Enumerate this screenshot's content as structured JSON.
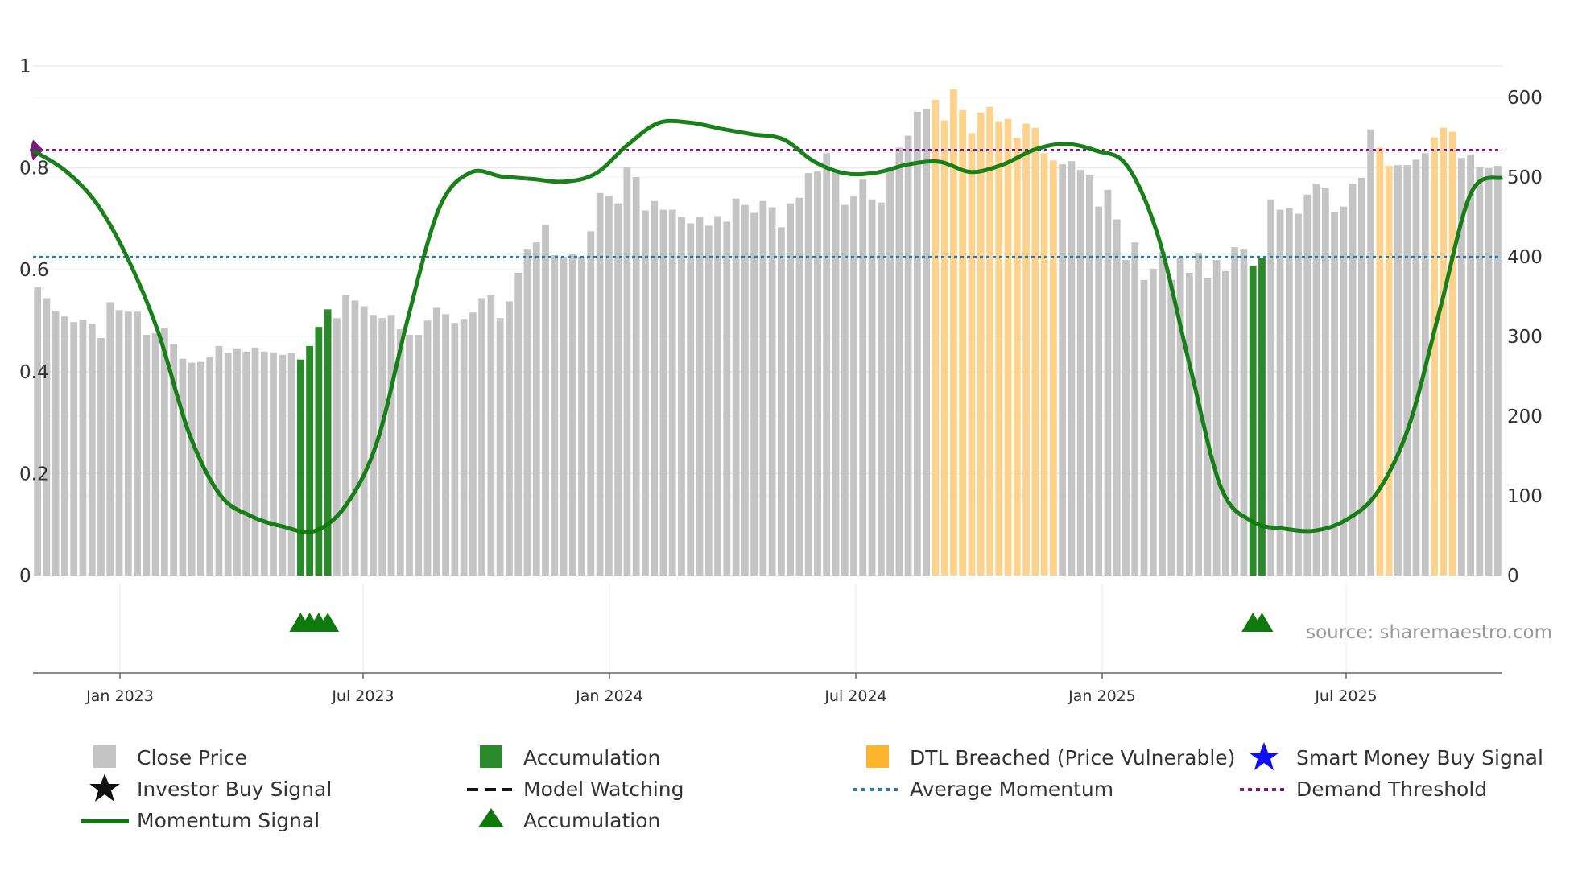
{
  "chart_data": {
    "type": "bar",
    "title": "",
    "left_axis": {
      "ticks": [
        "0",
        "0.2",
        "0.4",
        "0.6",
        "0.8",
        "1"
      ],
      "ylim": [
        0,
        1
      ]
    },
    "right_axis": {
      "ticks": [
        "0",
        "100",
        "200",
        "300",
        "400",
        "500",
        "600"
      ],
      "ylim": [
        0,
        600
      ]
    },
    "x_ticks": [
      "Jan 2023",
      "Jul 2023",
      "Jan 2024",
      "Jul 2024",
      "Jan 2025",
      "Jul 2025"
    ],
    "source": "source: sharemaestro.com",
    "demand_threshold": 0.835,
    "average_momentum": 0.625,
    "close_prices": [
      362,
      348,
      332,
      325,
      318,
      321,
      316,
      298,
      343,
      333,
      331,
      331,
      302,
      304,
      311,
      290,
      272,
      267,
      268,
      275,
      288,
      279,
      285,
      281,
      286,
      281,
      280,
      277,
      279,
      271,
      288,
      312,
      334,
      323,
      352,
      345,
      338,
      327,
      323,
      327,
      309,
      302,
      302,
      320,
      336,
      328,
      317,
      322,
      330,
      348,
      352,
      323,
      344,
      380,
      410,
      418,
      440,
      402,
      400,
      403,
      400,
      432,
      480,
      477,
      467,
      512,
      500,
      458,
      470,
      459,
      459,
      450,
      442,
      450,
      439,
      451,
      444,
      473,
      465,
      455,
      470,
      462,
      437,
      467,
      474,
      505,
      507,
      530,
      508,
      465,
      477,
      497,
      472,
      468,
      508,
      537,
      552,
      582,
      585,
      597,
      571,
      610,
      584,
      555,
      581,
      588,
      570,
      573,
      549,
      567,
      562,
      530,
      521,
      516,
      520,
      509,
      502,
      463,
      484,
      447,
      396,
      418,
      371,
      385,
      406,
      371,
      398,
      380,
      405,
      373,
      396,
      382,
      412,
      410,
      389,
      399,
      472,
      459,
      461,
      454,
      478,
      492,
      486,
      456,
      463,
      492,
      499,
      560,
      537,
      514,
      515,
      515,
      522,
      530,
      550,
      562,
      557,
      524,
      528,
      513,
      511,
      514
    ],
    "momentum": [
      0.834,
      0.796,
      0.733,
      0.626,
      0.479,
      0.278,
      0.157,
      0.116,
      0.096,
      0.087,
      0.137,
      0.261,
      0.507,
      0.722,
      0.791,
      0.783,
      0.778,
      0.773,
      0.789,
      0.844,
      0.888,
      0.889,
      0.877,
      0.866,
      0.856,
      0.812,
      0.789,
      0.791,
      0.807,
      0.812,
      0.792,
      0.806,
      0.835,
      0.847,
      0.834,
      0.804,
      0.664,
      0.413,
      0.173,
      0.106,
      0.092,
      0.088,
      0.109,
      0.163,
      0.291,
      0.521,
      0.751,
      0.781
    ],
    "accumulation_ranges": [
      [
        29,
        32
      ],
      [
        134,
        135
      ]
    ],
    "dtl_breached_ranges": [
      [
        99,
        112
      ],
      [
        148,
        149
      ],
      [
        154,
        156
      ]
    ],
    "accumulation_markers": [
      [
        29,
        32
      ],
      [
        134,
        135
      ]
    ],
    "legend": [
      {
        "label": "Close Price",
        "icon": "gray-square"
      },
      {
        "label": "Accumulation",
        "icon": "green-square"
      },
      {
        "label": "DTL Breached (Price Vulnerable)",
        "icon": "orange-square"
      },
      {
        "label": "Smart Money Buy Signal",
        "icon": "blue-star"
      },
      {
        "label": "Investor Buy Signal",
        "icon": "black-star"
      },
      {
        "label": "Model Watching",
        "icon": "black-dashed-line"
      },
      {
        "label": "Average Momentum",
        "icon": "blue-dotted-line"
      },
      {
        "label": "Demand Threshold",
        "icon": "purple-dotted-line"
      },
      {
        "label": "Momentum Signal",
        "icon": "green-line"
      },
      {
        "label": "Accumulation",
        "icon": "green-triangle"
      }
    ],
    "colors": {
      "close": "#c4c4c4",
      "accumulation": "#2a8a2a",
      "dtl": "#fdd28c",
      "momentum": "#0e7a0e",
      "average": "#2f78a8",
      "threshold": "#7a1a7a",
      "smart": "#1010ee",
      "grid": "#e8e8e8"
    }
  }
}
